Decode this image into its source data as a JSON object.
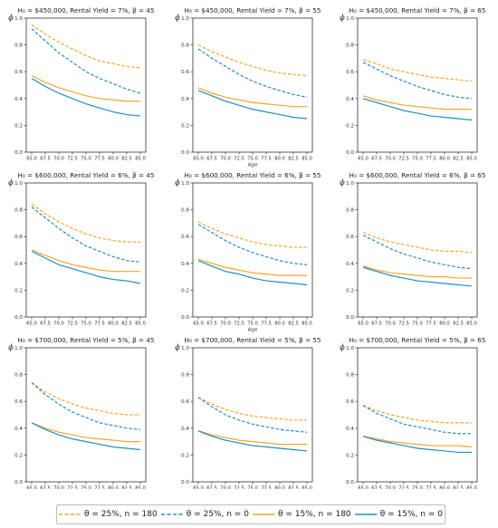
{
  "chart_data": [
    {
      "type": "line",
      "title": "H₀ = $450,000, Rental Yield = 7%, β = 45",
      "ylabel": "ϕ",
      "xlabel": "",
      "x": [
        65,
        67.5,
        70,
        72.5,
        75,
        77.5,
        80,
        82.5,
        85
      ],
      "xticks": [
        "65.0",
        "67.5",
        "70.0",
        "72.5",
        "75.0",
        "77.5",
        "80.0",
        "82.5",
        "85.0"
      ],
      "yticks": [
        "0.0",
        "0.2",
        "0.4",
        "0.6",
        "0.8",
        "1.0"
      ],
      "ylim": [
        0,
        1
      ],
      "series": [
        {
          "name": "θ = 25%, n = 180",
          "values": [
            0.95,
            0.88,
            0.82,
            0.77,
            0.72,
            0.68,
            0.66,
            0.64,
            0.63
          ]
        },
        {
          "name": "θ = 25%, n = 0",
          "values": [
            0.92,
            0.83,
            0.74,
            0.67,
            0.6,
            0.55,
            0.51,
            0.47,
            0.44
          ]
        },
        {
          "name": "θ = 15%, n = 180",
          "values": [
            0.57,
            0.52,
            0.48,
            0.45,
            0.42,
            0.4,
            0.39,
            0.38,
            0.38
          ]
        },
        {
          "name": "θ = 15%, n = 0",
          "values": [
            0.55,
            0.49,
            0.44,
            0.4,
            0.36,
            0.33,
            0.3,
            0.28,
            0.27
          ]
        }
      ]
    },
    {
      "type": "line",
      "title": "H₀ = $450,000, Rental Yield = 7%, β = 55",
      "ylabel": "ϕ",
      "xlabel": "Age",
      "x": [
        65,
        67.5,
        70,
        72.5,
        75,
        77.5,
        80,
        82.5,
        85
      ],
      "xticks": [
        "65.0",
        "67.5",
        "70.0",
        "72.5",
        "75.0",
        "77.5",
        "80.0",
        "82.5",
        "85.0"
      ],
      "yticks": [
        "0.0",
        "0.2",
        "0.4",
        "0.6",
        "0.8",
        "1.0"
      ],
      "ylim": [
        0,
        1
      ],
      "series": [
        {
          "name": "θ = 25%, n = 180",
          "values": [
            0.8,
            0.75,
            0.71,
            0.67,
            0.64,
            0.61,
            0.59,
            0.58,
            0.57
          ]
        },
        {
          "name": "θ = 25%, n = 0",
          "values": [
            0.77,
            0.7,
            0.64,
            0.58,
            0.53,
            0.49,
            0.46,
            0.43,
            0.41
          ]
        },
        {
          "name": "θ = 15%, n = 180",
          "values": [
            0.48,
            0.44,
            0.41,
            0.39,
            0.37,
            0.36,
            0.35,
            0.34,
            0.34
          ]
        },
        {
          "name": "θ = 15%, n = 0",
          "values": [
            0.46,
            0.42,
            0.38,
            0.35,
            0.32,
            0.3,
            0.28,
            0.26,
            0.25
          ]
        }
      ]
    },
    {
      "type": "line",
      "title": "H₀ = $450,000, Rental Yield = 7%, β = 65",
      "ylabel": "ϕ",
      "xlabel": "",
      "x": [
        65,
        67.5,
        70,
        72.5,
        75,
        77.5,
        80,
        82.5,
        85
      ],
      "xticks": [
        "65.0",
        "67.5",
        "70.0",
        "72.5",
        "75.0",
        "77.5",
        "80.0",
        "82.5",
        "85.0"
      ],
      "yticks": [
        "0.0",
        "0.2",
        "0.4",
        "0.6",
        "0.8",
        "1.0"
      ],
      "ylim": [
        0,
        1
      ],
      "series": [
        {
          "name": "θ = 25%, n = 180",
          "values": [
            0.69,
            0.66,
            0.62,
            0.6,
            0.58,
            0.56,
            0.55,
            0.54,
            0.53
          ]
        },
        {
          "name": "θ = 25%, n = 0",
          "values": [
            0.67,
            0.62,
            0.57,
            0.53,
            0.49,
            0.46,
            0.43,
            0.41,
            0.4
          ]
        },
        {
          "name": "θ = 15%, n = 180",
          "values": [
            0.42,
            0.39,
            0.37,
            0.35,
            0.34,
            0.33,
            0.32,
            0.32,
            0.32
          ]
        },
        {
          "name": "θ = 15%, n = 0",
          "values": [
            0.4,
            0.37,
            0.34,
            0.31,
            0.29,
            0.27,
            0.26,
            0.25,
            0.24
          ]
        }
      ]
    },
    {
      "type": "line",
      "title": "H₀ = $600,000, Rental Yield = 6%, β = 45",
      "ylabel": "ϕ",
      "xlabel": "",
      "x": [
        65,
        67.5,
        70,
        72.5,
        75,
        77.5,
        80,
        82.5,
        85
      ],
      "xticks": [
        "65.0",
        "67.5",
        "70.0",
        "72.5",
        "75.0",
        "77.5",
        "80.0",
        "82.5",
        "85.0"
      ],
      "yticks": [
        "0.0",
        "0.2",
        "0.4",
        "0.6",
        "0.8",
        "1.0"
      ],
      "ylim": [
        0,
        1
      ],
      "series": [
        {
          "name": "θ = 25%, n = 180",
          "values": [
            0.84,
            0.77,
            0.71,
            0.66,
            0.62,
            0.59,
            0.57,
            0.56,
            0.56
          ]
        },
        {
          "name": "θ = 25%, n = 0",
          "values": [
            0.82,
            0.74,
            0.66,
            0.59,
            0.53,
            0.49,
            0.45,
            0.42,
            0.41
          ]
        },
        {
          "name": "θ = 15%, n = 180",
          "values": [
            0.5,
            0.46,
            0.42,
            0.39,
            0.37,
            0.35,
            0.34,
            0.34,
            0.34
          ]
        },
        {
          "name": "θ = 15%, n = 0",
          "values": [
            0.49,
            0.44,
            0.39,
            0.36,
            0.33,
            0.3,
            0.28,
            0.27,
            0.25
          ]
        }
      ]
    },
    {
      "type": "line",
      "title": "H₀ = $600,000, Rental Yield = 6%, β = 55",
      "ylabel": "ϕ",
      "xlabel": "Age",
      "x": [
        65,
        67.5,
        70,
        72.5,
        75,
        77.5,
        80,
        82.5,
        85
      ],
      "xticks": [
        "65.0",
        "67.5",
        "70.0",
        "72.5",
        "75.0",
        "77.5",
        "80.0",
        "82.5",
        "85.0"
      ],
      "yticks": [
        "0.0",
        "0.2",
        "0.4",
        "0.6",
        "0.8",
        "1.0"
      ],
      "ylim": [
        0,
        1
      ],
      "series": [
        {
          "name": "θ = 25%, n = 180",
          "values": [
            0.71,
            0.66,
            0.62,
            0.59,
            0.56,
            0.54,
            0.53,
            0.52,
            0.52
          ]
        },
        {
          "name": "θ = 25%, n = 0",
          "values": [
            0.69,
            0.63,
            0.57,
            0.52,
            0.48,
            0.45,
            0.42,
            0.4,
            0.39
          ]
        },
        {
          "name": "θ = 15%, n = 180",
          "values": [
            0.43,
            0.4,
            0.37,
            0.35,
            0.33,
            0.32,
            0.31,
            0.31,
            0.31
          ]
        },
        {
          "name": "θ = 15%, n = 0",
          "values": [
            0.42,
            0.38,
            0.34,
            0.32,
            0.29,
            0.27,
            0.26,
            0.25,
            0.24
          ]
        }
      ]
    },
    {
      "type": "line",
      "title": "H₀ = $600,000, Rental Yield = 6%, β = 65",
      "ylabel": "ϕ",
      "xlabel": "",
      "x": [
        65,
        67.5,
        70,
        72.5,
        75,
        77.5,
        80,
        82.5,
        85
      ],
      "xticks": [
        "65.0",
        "67.5",
        "70.0",
        "72.5",
        "75.0",
        "77.5",
        "80.0",
        "82.5",
        "85.0"
      ],
      "yticks": [
        "0.0",
        "0.2",
        "0.4",
        "0.6",
        "0.8",
        "1.0"
      ],
      "ylim": [
        0,
        1
      ],
      "series": [
        {
          "name": "θ = 25%, n = 180",
          "values": [
            0.63,
            0.59,
            0.56,
            0.54,
            0.52,
            0.5,
            0.49,
            0.49,
            0.48
          ]
        },
        {
          "name": "θ = 25%, n = 0",
          "values": [
            0.61,
            0.56,
            0.51,
            0.47,
            0.44,
            0.41,
            0.39,
            0.37,
            0.36
          ]
        },
        {
          "name": "θ = 15%, n = 180",
          "values": [
            0.38,
            0.35,
            0.33,
            0.32,
            0.31,
            0.3,
            0.3,
            0.29,
            0.29
          ]
        },
        {
          "name": "θ = 15%, n = 0",
          "values": [
            0.37,
            0.34,
            0.31,
            0.29,
            0.27,
            0.26,
            0.25,
            0.24,
            0.23
          ]
        }
      ]
    },
    {
      "type": "line",
      "title": "H₀ = $700,000, Rental Yield = 5%, β = 45",
      "ylabel": "ϕ",
      "xlabel": "",
      "x": [
        65,
        67.5,
        70,
        72.5,
        75,
        77.5,
        80,
        82.5,
        85
      ],
      "xticks": [
        "65.0",
        "67.5",
        "70.0",
        "72.5",
        "75.0",
        "77.5",
        "80.0",
        "82.5",
        "85.0"
      ],
      "yticks": [
        "0.0",
        "0.2",
        "0.4",
        "0.6",
        "0.8",
        "1.0"
      ],
      "ylim": [
        0,
        1
      ],
      "series": [
        {
          "name": "θ = 25%, n = 180",
          "values": [
            0.74,
            0.67,
            0.62,
            0.58,
            0.55,
            0.53,
            0.51,
            0.5,
            0.5
          ]
        },
        {
          "name": "θ = 25%, n = 0",
          "values": [
            0.74,
            0.65,
            0.58,
            0.52,
            0.48,
            0.44,
            0.42,
            0.4,
            0.39
          ]
        },
        {
          "name": "θ = 15%, n = 180",
          "values": [
            0.44,
            0.4,
            0.37,
            0.35,
            0.33,
            0.32,
            0.31,
            0.3,
            0.3
          ]
        },
        {
          "name": "θ = 15%, n = 0",
          "values": [
            0.44,
            0.39,
            0.35,
            0.32,
            0.3,
            0.28,
            0.26,
            0.25,
            0.24
          ]
        }
      ]
    },
    {
      "type": "line",
      "title": "H₀ = $700,000, Rental Yield = 5%, β = 55",
      "ylabel": "ϕ",
      "xlabel": "Age",
      "x": [
        65,
        67.5,
        70,
        72.5,
        75,
        77.5,
        80,
        82.5,
        85
      ],
      "xticks": [
        "65.0",
        "67.5",
        "70.0",
        "72.5",
        "75.0",
        "77.5",
        "80.0",
        "82.5",
        "85.0"
      ],
      "yticks": [
        "0.0",
        "0.2",
        "0.4",
        "0.6",
        "0.8",
        "1.0"
      ],
      "ylim": [
        0,
        1
      ],
      "series": [
        {
          "name": "θ = 25%, n = 180",
          "values": [
            0.63,
            0.58,
            0.54,
            0.51,
            0.49,
            0.48,
            0.47,
            0.46,
            0.46
          ]
        },
        {
          "name": "θ = 25%, n = 0",
          "values": [
            0.63,
            0.56,
            0.5,
            0.46,
            0.43,
            0.41,
            0.39,
            0.38,
            0.37
          ]
        },
        {
          "name": "θ = 15%, n = 180",
          "values": [
            0.38,
            0.35,
            0.33,
            0.31,
            0.3,
            0.29,
            0.28,
            0.28,
            0.28
          ]
        },
        {
          "name": "θ = 15%, n = 0",
          "values": [
            0.38,
            0.34,
            0.31,
            0.29,
            0.27,
            0.26,
            0.25,
            0.24,
            0.23
          ]
        }
      ]
    },
    {
      "type": "line",
      "title": "H₀ = $700,000, Rental Yield = 5%, β = 65",
      "ylabel": "ϕ",
      "xlabel": "",
      "x": [
        65,
        67.5,
        70,
        72.5,
        75,
        77.5,
        80,
        82.5,
        85
      ],
      "xticks": [
        "65.0",
        "67.5",
        "70.0",
        "72.5",
        "75.0",
        "77.5",
        "80.0",
        "82.5",
        "85.0"
      ],
      "yticks": [
        "0.0",
        "0.2",
        "0.4",
        "0.6",
        "0.8",
        "1.0"
      ],
      "ylim": [
        0,
        1
      ],
      "series": [
        {
          "name": "θ = 25%, n = 180",
          "values": [
            0.57,
            0.53,
            0.5,
            0.48,
            0.46,
            0.45,
            0.44,
            0.44,
            0.44
          ]
        },
        {
          "name": "θ = 25%, n = 0",
          "values": [
            0.57,
            0.51,
            0.47,
            0.43,
            0.41,
            0.39,
            0.37,
            0.36,
            0.36
          ]
        },
        {
          "name": "θ = 15%, n = 180",
          "values": [
            0.34,
            0.32,
            0.3,
            0.29,
            0.28,
            0.27,
            0.27,
            0.27,
            0.26
          ]
        },
        {
          "name": "θ = 15%, n = 0",
          "values": [
            0.34,
            0.31,
            0.29,
            0.27,
            0.25,
            0.24,
            0.23,
            0.22,
            0.22
          ]
        }
      ]
    }
  ],
  "series_styles": [
    {
      "color": "#f5a623",
      "dash": true
    },
    {
      "color": "#1f8fc0",
      "dash": true
    },
    {
      "color": "#f5a623",
      "dash": false
    },
    {
      "color": "#1f8fc0",
      "dash": false
    }
  ],
  "legend": {
    "placement": "bottom-center",
    "items": [
      "θ = 25%, n = 180",
      "θ = 25%, n = 0",
      "θ = 15%, n = 180",
      "θ = 15%, n = 0"
    ]
  }
}
